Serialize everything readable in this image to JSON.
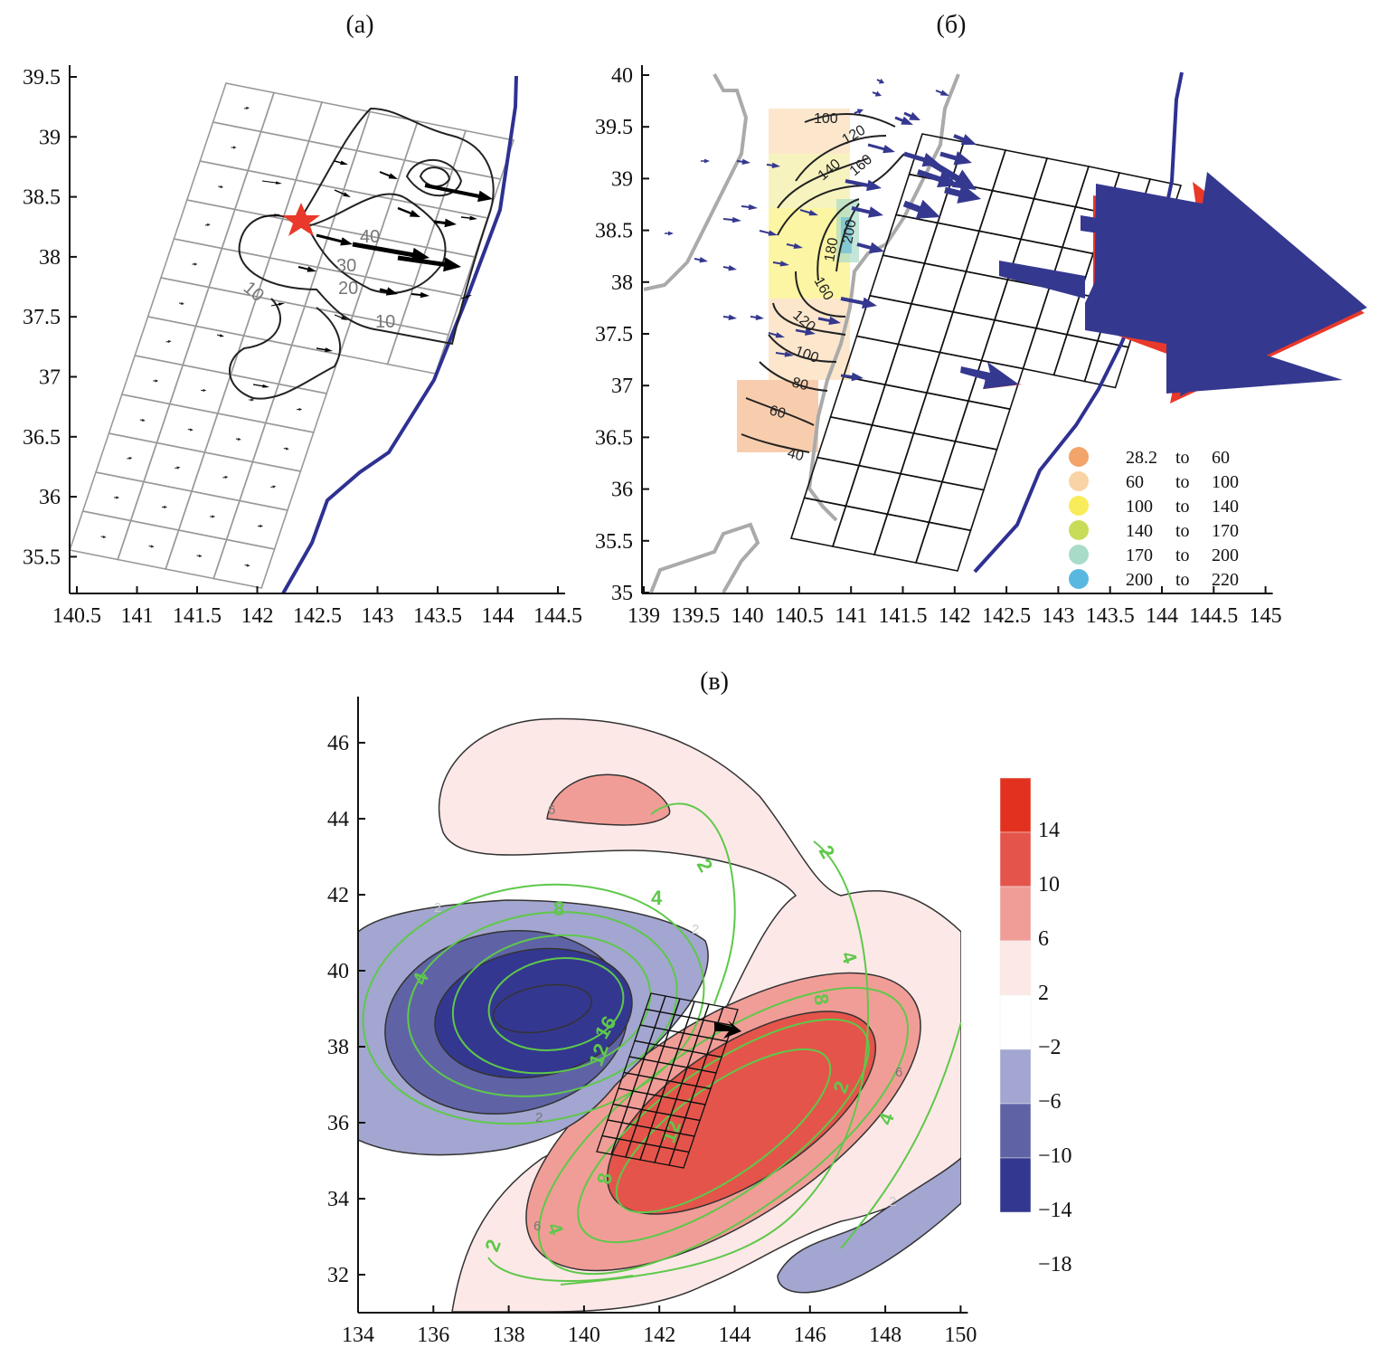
{
  "chart_data": [
    {
      "type": "map",
      "panel_label": "(а)",
      "xticks": [
        "140.5",
        "141",
        "141.5",
        "142",
        "142.5",
        "143",
        "143.5",
        "144",
        "144.5"
      ],
      "yticks": [
        "39.5",
        "39",
        "38.5",
        "38",
        "37.5",
        "37",
        "36.5",
        "36",
        "35.5"
      ],
      "xlim": [
        140.5,
        144.5
      ],
      "ylim": [
        35.2,
        39.6
      ],
      "contour_labels": [
        "40",
        "30",
        "20",
        "10",
        "10"
      ],
      "colors": {
        "grid": "#999999",
        "coast": "#2e3192",
        "epicenter": "#e8392a",
        "arrows": "#000000"
      }
    },
    {
      "type": "map",
      "panel_label": "(б)",
      "xticks": [
        "139",
        "139.5",
        "140",
        "140.5",
        "141",
        "141.5",
        "142",
        "142.5",
        "143",
        "143.5",
        "144",
        "144.5",
        "145"
      ],
      "yticks": [
        "40",
        "39.5",
        "39",
        "38.5",
        "38",
        "37.5",
        "37",
        "36.5",
        "36",
        "35.5",
        "35"
      ],
      "xlim": [
        139,
        145
      ],
      "ylim": [
        35,
        40
      ],
      "contour_labels": [
        "100",
        "120",
        "140",
        "160",
        "180",
        "200",
        "160",
        "120",
        "100",
        "80",
        "60",
        "40"
      ],
      "legend": [
        {
          "from": "28.2",
          "to_word": "to",
          "to": "60",
          "color": "#f3a46a"
        },
        {
          "from": "60",
          "to_word": "to",
          "to": "100",
          "color": "#fad3a4"
        },
        {
          "from": "100",
          "to_word": "to",
          "to": "140",
          "color": "#f9ec5a"
        },
        {
          "from": "140",
          "to_word": "to",
          "to": "170",
          "color": "#c8dc5a"
        },
        {
          "from": "170",
          "to_word": "to",
          "to": "200",
          "color": "#a9dcc8"
        },
        {
          "from": "200",
          "to_word": "to",
          "to": "220",
          "color": "#5ab8e0"
        }
      ],
      "colors": {
        "grid": "#111111",
        "coast": "#2e3192",
        "land_coast": "#aaaaaa",
        "arrows": "#35388f"
      }
    },
    {
      "type": "heatmap",
      "panel_label": "(в)",
      "xticks": [
        "134",
        "136",
        "138",
        "140",
        "142",
        "144",
        "146",
        "148",
        "150"
      ],
      "yticks": [
        "46",
        "44",
        "42",
        "40",
        "38",
        "36",
        "34",
        "32"
      ],
      "xlim": [
        134,
        150
      ],
      "ylim": [
        31,
        47
      ],
      "colorbar_ticks": [
        "14",
        "10",
        "6",
        "2",
        "−2",
        "−6",
        "−10",
        "−14",
        "−18"
      ],
      "colorbar_colors": [
        "#e2321f",
        "#e5544a",
        "#f19d97",
        "#fde8e8",
        "#ffffff",
        "#a3a6d0",
        "#5f63a6",
        "#343790"
      ],
      "fill_labels": [
        "6",
        "2",
        "2",
        "2",
        "6",
        "6",
        "2"
      ],
      "green_labels": [
        "2",
        "2",
        "4",
        "8",
        "4",
        "4",
        "8",
        "16",
        "12",
        "12",
        "8",
        "4",
        "2",
        "2",
        "4"
      ]
    }
  ]
}
